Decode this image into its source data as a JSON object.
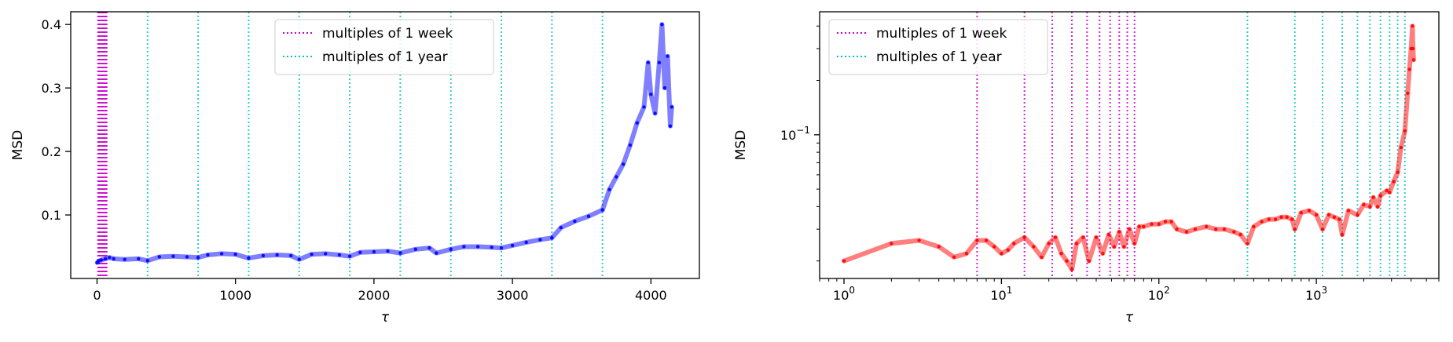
{
  "chart_data": [
    {
      "type": "line",
      "xscale": "linear",
      "yscale": "linear",
      "xlabel": "τ",
      "ylabel": "MSD",
      "xlim": [
        -190,
        4350
      ],
      "ylim": [
        0.0,
        0.42
      ],
      "xticks": [
        0,
        1000,
        2000,
        3000,
        4000
      ],
      "xtick_labels": [
        "0",
        "1000",
        "2000",
        "3000",
        "4000"
      ],
      "yticks": [
        0.1,
        0.2,
        0.3,
        0.4
      ],
      "ytick_labels": [
        "0.1",
        "0.2",
        "0.3",
        "0.4"
      ],
      "legend_position": "top-center",
      "legend": [
        {
          "label": "multiples of 1 week",
          "color": "#cc00cc",
          "style": "dotted"
        },
        {
          "label": "multiples of 1 year",
          "color": "#00bfbf",
          "style": "dotted"
        }
      ],
      "vlines_week": [
        7,
        14,
        21,
        28,
        35,
        42,
        49,
        56,
        63,
        70
      ],
      "vlines_year": [
        365,
        730,
        1095,
        1460,
        1825,
        2190,
        2555,
        2920,
        3285,
        3650
      ],
      "series": [
        {
          "color": "#0000ff",
          "points": [
            [
              1,
              0.025
            ],
            [
              10,
              0.027
            ],
            [
              30,
              0.029
            ],
            [
              60,
              0.031
            ],
            [
              90,
              0.033
            ],
            [
              120,
              0.031
            ],
            [
              200,
              0.03
            ],
            [
              300,
              0.031
            ],
            [
              365,
              0.028
            ],
            [
              450,
              0.034
            ],
            [
              550,
              0.035
            ],
            [
              650,
              0.034
            ],
            [
              730,
              0.033
            ],
            [
              800,
              0.037
            ],
            [
              900,
              0.039
            ],
            [
              1000,
              0.038
            ],
            [
              1095,
              0.032
            ],
            [
              1200,
              0.036
            ],
            [
              1300,
              0.037
            ],
            [
              1400,
              0.036
            ],
            [
              1460,
              0.03
            ],
            [
              1550,
              0.038
            ],
            [
              1650,
              0.039
            ],
            [
              1750,
              0.037
            ],
            [
              1825,
              0.035
            ],
            [
              1900,
              0.041
            ],
            [
              2000,
              0.042
            ],
            [
              2100,
              0.043
            ],
            [
              2190,
              0.04
            ],
            [
              2300,
              0.046
            ],
            [
              2400,
              0.048
            ],
            [
              2450,
              0.04
            ],
            [
              2555,
              0.046
            ],
            [
              2650,
              0.05
            ],
            [
              2750,
              0.05
            ],
            [
              2850,
              0.049
            ],
            [
              2920,
              0.048
            ],
            [
              3000,
              0.052
            ],
            [
              3100,
              0.057
            ],
            [
              3200,
              0.061
            ],
            [
              3285,
              0.064
            ],
            [
              3350,
              0.08
            ],
            [
              3450,
              0.09
            ],
            [
              3550,
              0.098
            ],
            [
              3650,
              0.108
            ],
            [
              3700,
              0.14
            ],
            [
              3750,
              0.16
            ],
            [
              3800,
              0.18
            ],
            [
              3850,
              0.21
            ],
            [
              3900,
              0.245
            ],
            [
              3950,
              0.27
            ],
            [
              3980,
              0.34
            ],
            [
              4000,
              0.29
            ],
            [
              4030,
              0.26
            ],
            [
              4060,
              0.34
            ],
            [
              4080,
              0.4
            ],
            [
              4100,
              0.3
            ],
            [
              4120,
              0.35
            ],
            [
              4140,
              0.24
            ],
            [
              4150,
              0.27
            ]
          ]
        }
      ]
    },
    {
      "type": "line",
      "xscale": "log",
      "yscale": "log",
      "xlabel": "τ",
      "ylabel": "MSD",
      "xlim": [
        0.7,
        6000
      ],
      "ylim": [
        0.016,
        0.48
      ],
      "xticks": [
        1,
        10,
        100,
        1000
      ],
      "xtick_labels": [
        "10",
        "10",
        "10",
        "10"
      ],
      "xtick_exponents": [
        "0",
        "1",
        "2",
        "3"
      ],
      "yticks": [
        0.1
      ],
      "ytick_labels": [
        "10"
      ],
      "ytick_exponents": [
        "−1"
      ],
      "legend_position": "upper-left",
      "legend": [
        {
          "label": "multiples of 1 week",
          "color": "#cc00cc",
          "style": "dotted"
        },
        {
          "label": "multiples of 1 year",
          "color": "#00bfbf",
          "style": "dotted"
        }
      ],
      "vlines_week": [
        7,
        14,
        21,
        28,
        35,
        42,
        49,
        56,
        63,
        70
      ],
      "vlines_year": [
        365,
        730,
        1095,
        1460,
        1825,
        2190,
        2555,
        2920,
        3285,
        3650
      ],
      "series": [
        {
          "color": "#ff0000",
          "points": [
            [
              1,
              0.02
            ],
            [
              2,
              0.025
            ],
            [
              3,
              0.026
            ],
            [
              4,
              0.024
            ],
            [
              5,
              0.021
            ],
            [
              6,
              0.022
            ],
            [
              7,
              0.026
            ],
            [
              8,
              0.026
            ],
            [
              9,
              0.024
            ],
            [
              10,
              0.022
            ],
            [
              11,
              0.023
            ],
            [
              12,
              0.025
            ],
            [
              14,
              0.027
            ],
            [
              16,
              0.024
            ],
            [
              18,
              0.021
            ],
            [
              20,
              0.025
            ],
            [
              22,
              0.027
            ],
            [
              24,
              0.022
            ],
            [
              26,
              0.02
            ],
            [
              28,
              0.018
            ],
            [
              30,
              0.025
            ],
            [
              33,
              0.027
            ],
            [
              36,
              0.02
            ],
            [
              40,
              0.027
            ],
            [
              44,
              0.022
            ],
            [
              48,
              0.028
            ],
            [
              52,
              0.024
            ],
            [
              56,
              0.029
            ],
            [
              60,
              0.024
            ],
            [
              65,
              0.03
            ],
            [
              70,
              0.025
            ],
            [
              75,
              0.031
            ],
            [
              80,
              0.031
            ],
            [
              90,
              0.032
            ],
            [
              100,
              0.032
            ],
            [
              110,
              0.033
            ],
            [
              120,
              0.033
            ],
            [
              130,
              0.03
            ],
            [
              150,
              0.029
            ],
            [
              170,
              0.03
            ],
            [
              200,
              0.031
            ],
            [
              230,
              0.03
            ],
            [
              260,
              0.03
            ],
            [
              300,
              0.029
            ],
            [
              330,
              0.028
            ],
            [
              365,
              0.025
            ],
            [
              400,
              0.031
            ],
            [
              450,
              0.033
            ],
            [
              500,
              0.034
            ],
            [
              550,
              0.034
            ],
            [
              600,
              0.035
            ],
            [
              650,
              0.035
            ],
            [
              700,
              0.034
            ],
            [
              730,
              0.03
            ],
            [
              800,
              0.037
            ],
            [
              900,
              0.038
            ],
            [
              1000,
              0.036
            ],
            [
              1095,
              0.03
            ],
            [
              1200,
              0.036
            ],
            [
              1300,
              0.035
            ],
            [
              1400,
              0.034
            ],
            [
              1460,
              0.028
            ],
            [
              1600,
              0.038
            ],
            [
              1825,
              0.036
            ],
            [
              2000,
              0.041
            ],
            [
              2190,
              0.04
            ],
            [
              2300,
              0.045
            ],
            [
              2450,
              0.04
            ],
            [
              2555,
              0.046
            ],
            [
              2800,
              0.049
            ],
            [
              2920,
              0.048
            ],
            [
              3100,
              0.055
            ],
            [
              3285,
              0.062
            ],
            [
              3450,
              0.085
            ],
            [
              3650,
              0.105
            ],
            [
              3800,
              0.17
            ],
            [
              3900,
              0.23
            ],
            [
              4000,
              0.3
            ],
            [
              4080,
              0.4
            ],
            [
              4110,
              0.3
            ],
            [
              4150,
              0.26
            ]
          ]
        }
      ]
    }
  ]
}
